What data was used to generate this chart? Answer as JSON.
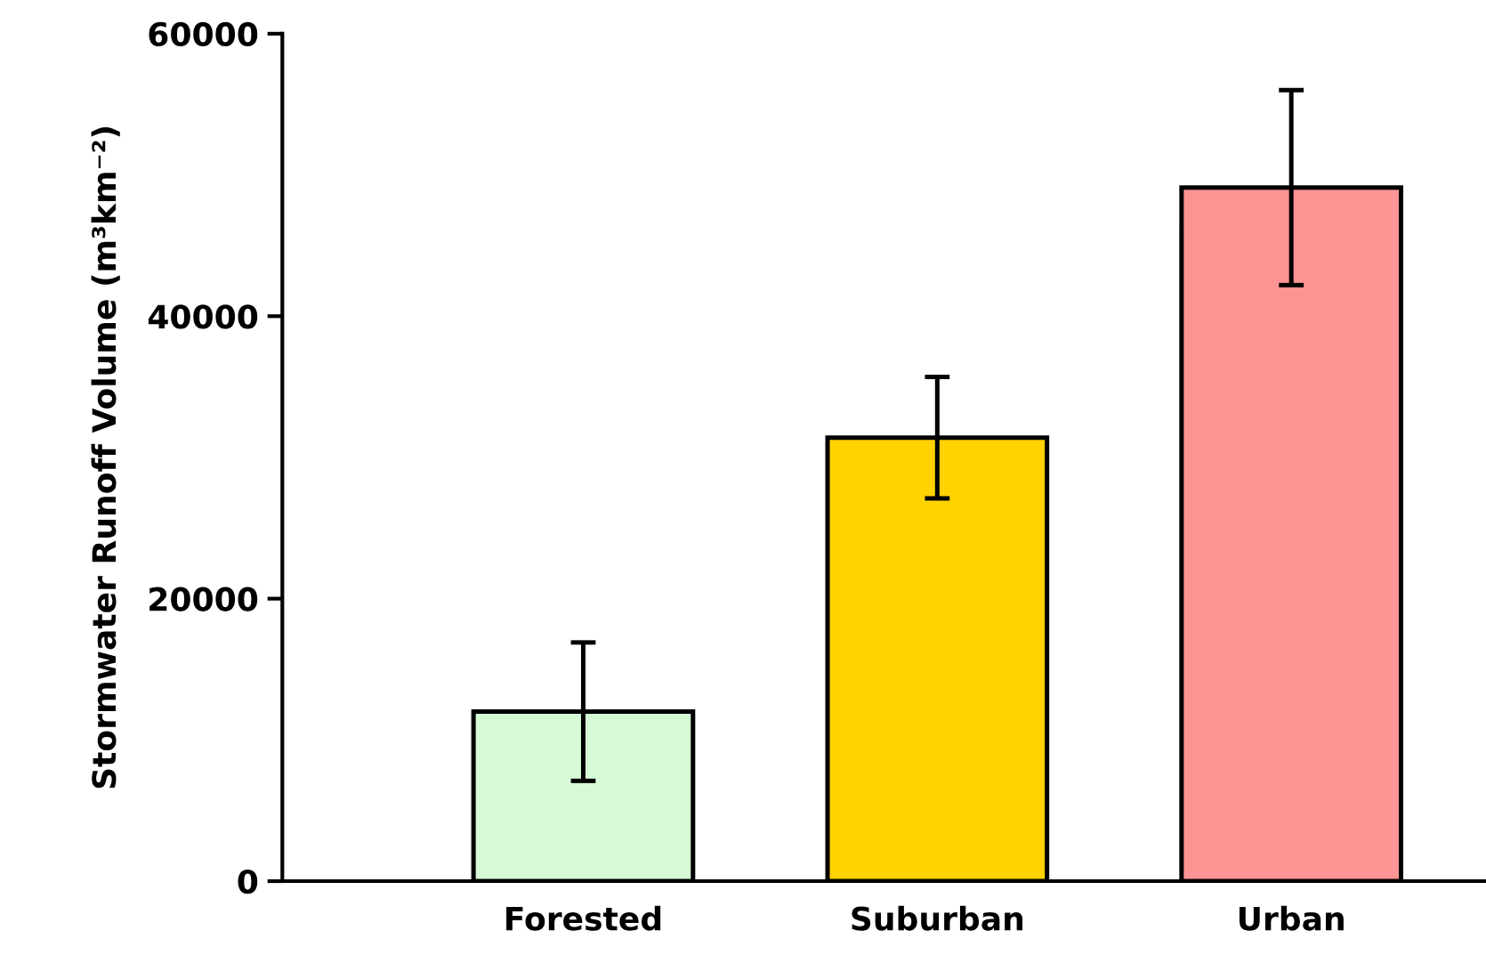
{
  "chart_data": {
    "type": "bar",
    "ylabel": "Stormwater Runoff Volume (m³km⁻²)",
    "categories": [
      "Forested",
      "Suburban",
      "Urban"
    ],
    "values": [
      12000,
      31400,
      49100
    ],
    "errors": [
      4900,
      4300,
      6900
    ],
    "colors": [
      "#d6fad6",
      "#ffd200",
      "#ff9494"
    ],
    "ylim": [
      0,
      60000
    ],
    "yticks": [
      0,
      20000,
      40000,
      60000
    ],
    "grid": false
  }
}
